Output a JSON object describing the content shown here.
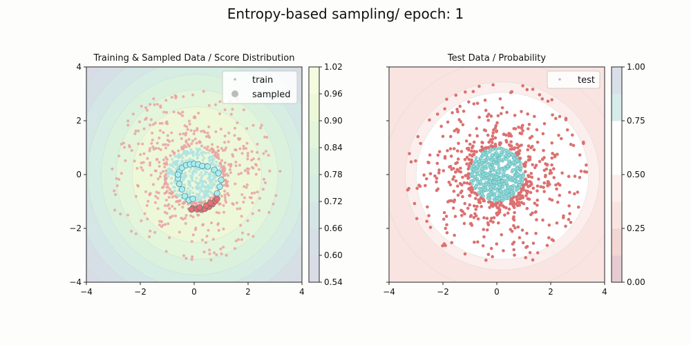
{
  "figure": {
    "title": "Entropy-based sampling/ epoch: 1"
  },
  "chart_data": [
    {
      "type": "scatter",
      "title": "Training & Sampled Data / Score Distribution",
      "xlim": [
        -4,
        4
      ],
      "ylim": [
        -4,
        4
      ],
      "xticks": [
        "−4",
        "−2",
        "0",
        "2",
        "4"
      ],
      "yticks": [
        "−4",
        "−2",
        "0",
        "2",
        "4"
      ],
      "legend": {
        "position": "top-right",
        "entries": [
          "train",
          "sampled"
        ]
      },
      "background": "contour of sampling score",
      "colorbar": {
        "ticks": [
          "0.54",
          "0.60",
          "0.66",
          "0.72",
          "0.78",
          "0.84",
          "0.90",
          "0.96",
          "1.02"
        ],
        "levels": [
          0.54,
          0.6,
          0.66,
          0.72,
          0.78,
          0.84,
          0.9,
          0.96,
          1.02
        ],
        "colors": [
          "#d9dce7",
          "#d6dfe6",
          "#d4e6e5",
          "#d5ede3",
          "#d9f1dd",
          "#e3f5da",
          "#edf8d8",
          "#f4fbde"
        ]
      },
      "series": [
        {
          "name": "train (class 0, inner disc)",
          "color": "#aee3e2",
          "center": [
            0,
            0
          ],
          "radius": 1.0,
          "count": 360
        },
        {
          "name": "train (class 1, ring)",
          "color": "#e8a2a2",
          "center": [
            0,
            0
          ],
          "inner_radius": 1.0,
          "outer_radius": 3.2,
          "count": 520
        },
        {
          "name": "sampled class 0",
          "color": "#a8eef0",
          "points": [
            [
              -0.55,
              0.1
            ],
            [
              -0.45,
              0.25
            ],
            [
              -0.3,
              0.35
            ],
            [
              -0.15,
              0.38
            ],
            [
              0.0,
              0.4
            ],
            [
              0.15,
              0.38
            ],
            [
              0.3,
              0.32
            ],
            [
              0.5,
              0.3
            ],
            [
              0.75,
              0.18
            ],
            [
              0.9,
              0.05
            ],
            [
              1.0,
              -0.2
            ],
            [
              0.95,
              -0.45
            ],
            [
              0.85,
              -0.7
            ],
            [
              -0.6,
              -0.15
            ],
            [
              -0.55,
              -0.35
            ],
            [
              -0.45,
              -0.55
            ],
            [
              -0.35,
              -0.8
            ],
            [
              -0.2,
              -0.95
            ],
            [
              -0.6,
              0.0
            ],
            [
              -0.05,
              -0.9
            ]
          ]
        },
        {
          "name": "sampled class 1",
          "color": "#e86f70",
          "points": [
            [
              -0.05,
              -1.25
            ],
            [
              0.1,
              -1.28
            ],
            [
              0.25,
              -1.3
            ],
            [
              0.4,
              -1.27
            ],
            [
              0.55,
              -1.2
            ],
            [
              0.68,
              -1.1
            ],
            [
              0.78,
              -0.98
            ],
            [
              0.85,
              -0.9
            ],
            [
              -0.1,
              -1.3
            ],
            [
              0.2,
              -1.22
            ],
            [
              0.45,
              -1.15
            ],
            [
              0.6,
              -1.05
            ]
          ]
        }
      ]
    },
    {
      "type": "scatter",
      "title": "Test Data / Probability",
      "xlim": [
        -4,
        4
      ],
      "ylim": [
        -4,
        4
      ],
      "xticks": [
        "−4",
        "−2",
        "0",
        "2",
        "4"
      ],
      "yticks": [],
      "legend": {
        "position": "top-right",
        "entries": [
          "test"
        ]
      },
      "background": "contour of predicted probability",
      "colorbar": {
        "ticks": [
          "0.00",
          "0.25",
          "0.50",
          "0.75",
          "1.00"
        ],
        "levels": [
          0.0,
          0.125,
          0.25,
          0.375,
          0.5,
          0.625,
          0.75,
          0.875,
          1.0
        ],
        "colors": [
          "#e6ccd2",
          "#f2d6d3",
          "#f9e4e1",
          "#fbeeec",
          "#ffffff",
          "#ffffff",
          "#d6ecea",
          "#d9dfe8"
        ]
      },
      "series": [
        {
          "name": "test (class 0, inner disc)",
          "color": "#8fdad9",
          "center": [
            0,
            0
          ],
          "radius": 1.0,
          "count": 420
        },
        {
          "name": "test (class 1, ring)",
          "color": "#dc7070",
          "center": [
            0,
            0
          ],
          "inner_radius": 1.0,
          "outer_radius": 3.4,
          "count": 560
        }
      ]
    }
  ]
}
